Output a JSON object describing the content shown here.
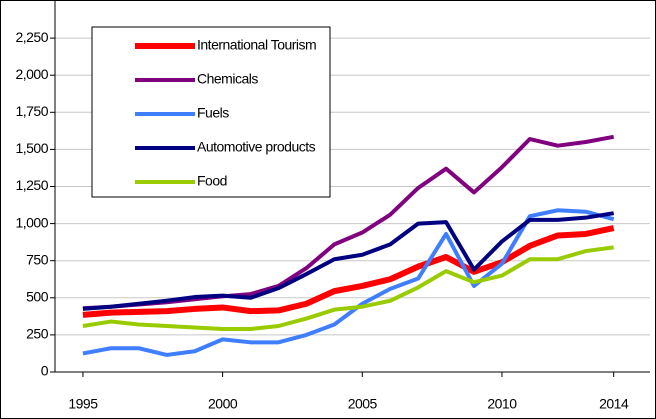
{
  "chart_data": {
    "type": "line",
    "x": [
      1995,
      1996,
      1997,
      1998,
      1999,
      2000,
      2001,
      2002,
      2003,
      2004,
      2005,
      2006,
      2007,
      2008,
      2009,
      2010,
      2011,
      2012,
      2013,
      2014
    ],
    "series": [
      {
        "name": "International Tourism",
        "color": "#ff0000",
        "values": [
          385,
          400,
          405,
          410,
          425,
          435,
          410,
          415,
          460,
          545,
          580,
          625,
          710,
          775,
          675,
          740,
          850,
          920,
          930,
          970
        ]
      },
      {
        "name": "Chemicals",
        "color": "#800080",
        "values": [
          430,
          440,
          455,
          470,
          490,
          510,
          525,
          580,
          700,
          860,
          940,
          1060,
          1240,
          1370,
          1210,
          1380,
          1570,
          1525,
          1550,
          1585
        ]
      },
      {
        "name": "Fuels",
        "color": "#3f7fff",
        "values": [
          125,
          160,
          160,
          115,
          140,
          220,
          200,
          200,
          250,
          320,
          460,
          560,
          630,
          930,
          580,
          730,
          1050,
          1090,
          1080,
          1030
        ]
      },
      {
        "name": "Automotive products",
        "color": "#000080",
        "values": [
          425,
          440,
          460,
          480,
          505,
          515,
          500,
          565,
          660,
          760,
          790,
          860,
          1000,
          1010,
          690,
          880,
          1025,
          1025,
          1040,
          1070
        ]
      },
      {
        "name": "Food",
        "color": "#99cc00",
        "values": [
          310,
          340,
          320,
          310,
          300,
          290,
          290,
          310,
          360,
          420,
          440,
          480,
          570,
          680,
          605,
          650,
          760,
          760,
          815,
          840
        ]
      }
    ],
    "xlim": [
      1994,
      2015.3
    ],
    "xticks": [
      1995,
      2000,
      2005,
      2010,
      2014
    ],
    "ylim": [
      0,
      2500
    ],
    "yticks": [
      0,
      250,
      500,
      750,
      {
        "value": 1000,
        "label": "1,000"
      },
      {
        "value": 1250,
        "label": "1,250"
      },
      {
        "value": 1500,
        "label": "1,500"
      },
      {
        "value": 1750,
        "label": "1,750"
      },
      {
        "value": 2000,
        "label": "2,000"
      },
      {
        "value": 2250,
        "label": "2,250"
      }
    ],
    "grid": true
  }
}
